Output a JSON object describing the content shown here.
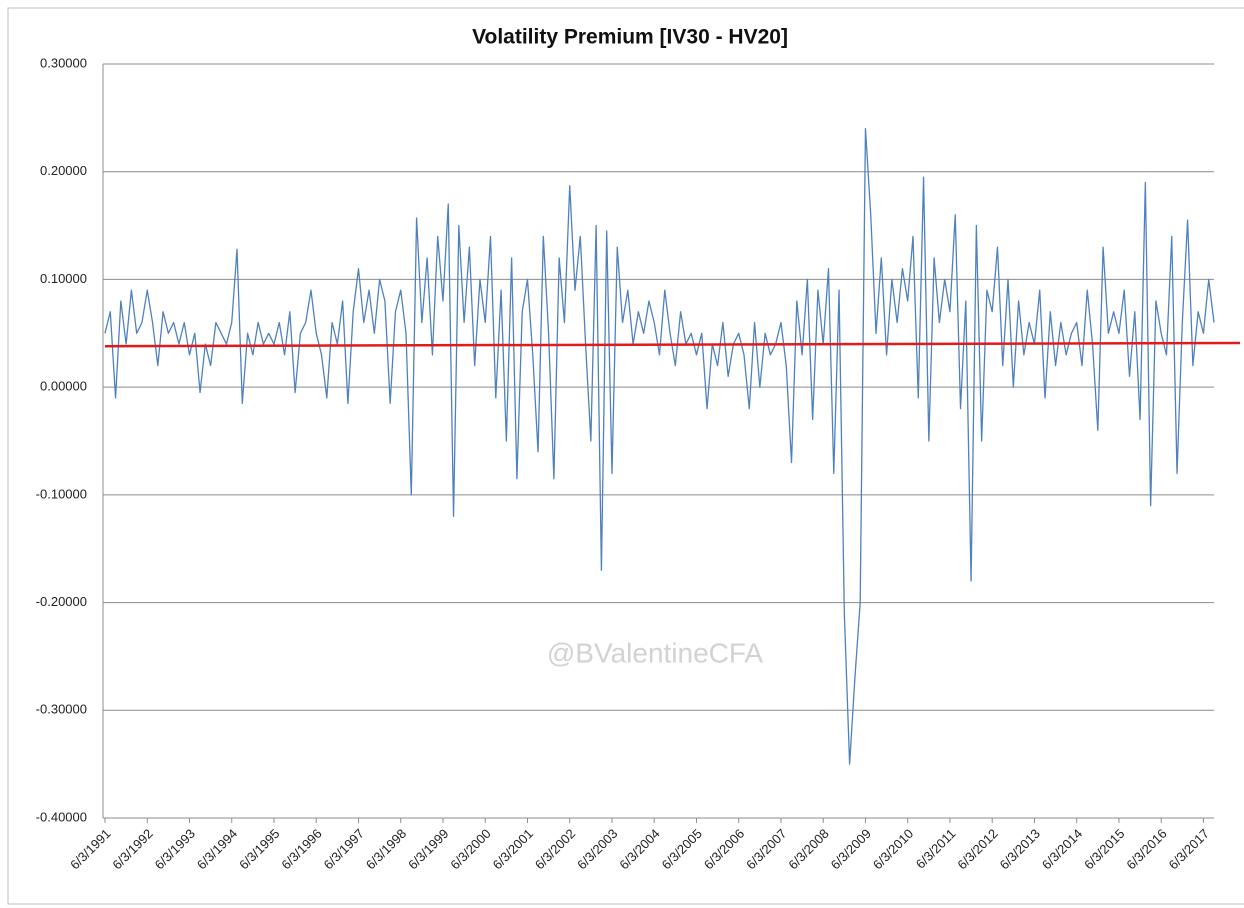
{
  "chart_data": {
    "type": "line",
    "title": "Volatility Premium [IV30 - HV20]",
    "annotation": "@BValentineCFA",
    "ylim": [
      -0.4,
      0.3
    ],
    "yticks": [
      {
        "value": 0.3,
        "label": "0.30000"
      },
      {
        "value": 0.2,
        "label": "0.20000"
      },
      {
        "value": 0.1,
        "label": "0.10000"
      },
      {
        "value": 0,
        "label": "0.00000"
      },
      {
        "value": -0.1,
        "label": "-0.10000"
      },
      {
        "value": -0.2,
        "label": "-0.20000"
      },
      {
        "value": -0.3,
        "label": "-0.30000"
      },
      {
        "value": -0.4,
        "label": "-0.40000"
      }
    ],
    "grid": true,
    "categories": [
      "6/3/1991",
      null,
      null,
      null,
      null,
      null,
      null,
      null,
      "6/3/1992",
      null,
      null,
      null,
      null,
      null,
      null,
      null,
      "6/3/1993",
      null,
      null,
      null,
      null,
      null,
      null,
      null,
      "6/3/1994",
      null,
      null,
      null,
      null,
      null,
      null,
      null,
      "6/3/1995",
      null,
      null,
      null,
      null,
      null,
      null,
      null,
      "6/3/1996",
      null,
      null,
      null,
      null,
      null,
      null,
      null,
      "6/3/1997",
      null,
      null,
      null,
      null,
      null,
      null,
      null,
      "6/3/1998",
      null,
      null,
      null,
      null,
      null,
      null,
      null,
      "6/3/1999",
      null,
      null,
      null,
      null,
      null,
      null,
      null,
      "6/3/2000",
      null,
      null,
      null,
      null,
      null,
      null,
      null,
      "6/3/2001",
      null,
      null,
      null,
      null,
      null,
      null,
      null,
      "6/3/2002",
      null,
      null,
      null,
      null,
      null,
      null,
      null,
      "6/3/2003",
      null,
      null,
      null,
      null,
      null,
      null,
      null,
      "6/3/2004",
      null,
      null,
      null,
      null,
      null,
      null,
      null,
      "6/3/2005",
      null,
      null,
      null,
      null,
      null,
      null,
      null,
      "6/3/2006",
      null,
      null,
      null,
      null,
      null,
      null,
      null,
      "6/3/2007",
      null,
      null,
      null,
      null,
      null,
      null,
      null,
      "6/3/2008",
      null,
      null,
      null,
      null,
      null,
      null,
      null,
      "6/3/2009",
      null,
      null,
      null,
      null,
      null,
      null,
      null,
      "6/3/2010",
      null,
      null,
      null,
      null,
      null,
      null,
      null,
      "6/3/2011",
      null,
      null,
      null,
      null,
      null,
      null,
      null,
      "6/3/2012",
      null,
      null,
      null,
      null,
      null,
      null,
      null,
      "6/3/2013",
      null,
      null,
      null,
      null,
      null,
      null,
      null,
      "6/3/2014",
      null,
      null,
      null,
      null,
      null,
      null,
      null,
      "6/3/2015",
      null,
      null,
      null,
      null,
      null,
      null,
      null,
      "6/3/2016",
      null,
      null,
      null,
      null,
      null,
      null,
      null,
      "6/3/2017",
      null,
      null
    ],
    "series": [
      {
        "color": "#4f81bd",
        "values": [
          0.05,
          0.07,
          -0.01,
          0.08,
          0.04,
          0.09,
          0.05,
          0.06,
          0.09,
          0.06,
          0.02,
          0.07,
          0.05,
          0.06,
          0.04,
          0.06,
          0.03,
          0.05,
          -0.005,
          0.04,
          0.02,
          0.06,
          0.05,
          0.04,
          0.06,
          0.128,
          -0.015,
          0.05,
          0.03,
          0.06,
          0.04,
          0.05,
          0.04,
          0.06,
          0.03,
          0.07,
          -0.005,
          0.05,
          0.06,
          0.09,
          0.05,
          0.03,
          -0.01,
          0.06,
          0.04,
          0.08,
          -0.015,
          0.07,
          0.11,
          0.06,
          0.09,
          0.05,
          0.1,
          0.08,
          -0.015,
          0.07,
          0.09,
          0.05,
          -0.1,
          0.157,
          0.06,
          0.12,
          0.03,
          0.14,
          0.08,
          0.17,
          -0.12,
          0.15,
          0.06,
          0.13,
          0.02,
          0.1,
          0.06,
          0.14,
          -0.01,
          0.09,
          -0.05,
          0.12,
          -0.085,
          0.07,
          0.1,
          0.03,
          -0.06,
          0.14,
          0.05,
          -0.085,
          0.12,
          0.06,
          0.187,
          0.09,
          0.14,
          0.04,
          -0.05,
          0.15,
          -0.17,
          0.145,
          -0.08,
          0.13,
          0.06,
          0.09,
          0.04,
          0.07,
          0.05,
          0.08,
          0.06,
          0.03,
          0.09,
          0.05,
          0.02,
          0.07,
          0.04,
          0.05,
          0.03,
          0.05,
          -0.02,
          0.04,
          0.02,
          0.06,
          0.01,
          0.04,
          0.05,
          0.03,
          -0.02,
          0.06,
          0.0,
          0.05,
          0.03,
          0.04,
          0.06,
          0.02,
          -0.07,
          0.08,
          0.03,
          0.1,
          -0.03,
          0.09,
          0.04,
          0.11,
          -0.08,
          0.09,
          -0.21,
          -0.35,
          -0.27,
          -0.2,
          0.24,
          0.16,
          0.05,
          0.12,
          0.03,
          0.1,
          0.06,
          0.11,
          0.08,
          0.14,
          -0.01,
          0.195,
          -0.05,
          0.12,
          0.06,
          0.1,
          0.07,
          0.16,
          -0.02,
          0.08,
          -0.18,
          0.15,
          -0.05,
          0.09,
          0.07,
          0.13,
          0.02,
          0.1,
          0.0,
          0.08,
          0.03,
          0.06,
          0.04,
          0.09,
          -0.01,
          0.07,
          0.02,
          0.06,
          0.03,
          0.05,
          0.06,
          0.02,
          0.09,
          0.04,
          -0.04,
          0.13,
          0.05,
          0.07,
          0.05,
          0.09,
          0.01,
          0.07,
          -0.03,
          0.19,
          -0.11,
          0.08,
          0.05,
          0.03,
          0.14,
          -0.08,
          0.06,
          0.155,
          0.02,
          0.07,
          0.05,
          0.1,
          0.06
        ]
      }
    ],
    "trend": {
      "color": "#e31a1c",
      "start": 0.038,
      "end": 0.041
    }
  }
}
